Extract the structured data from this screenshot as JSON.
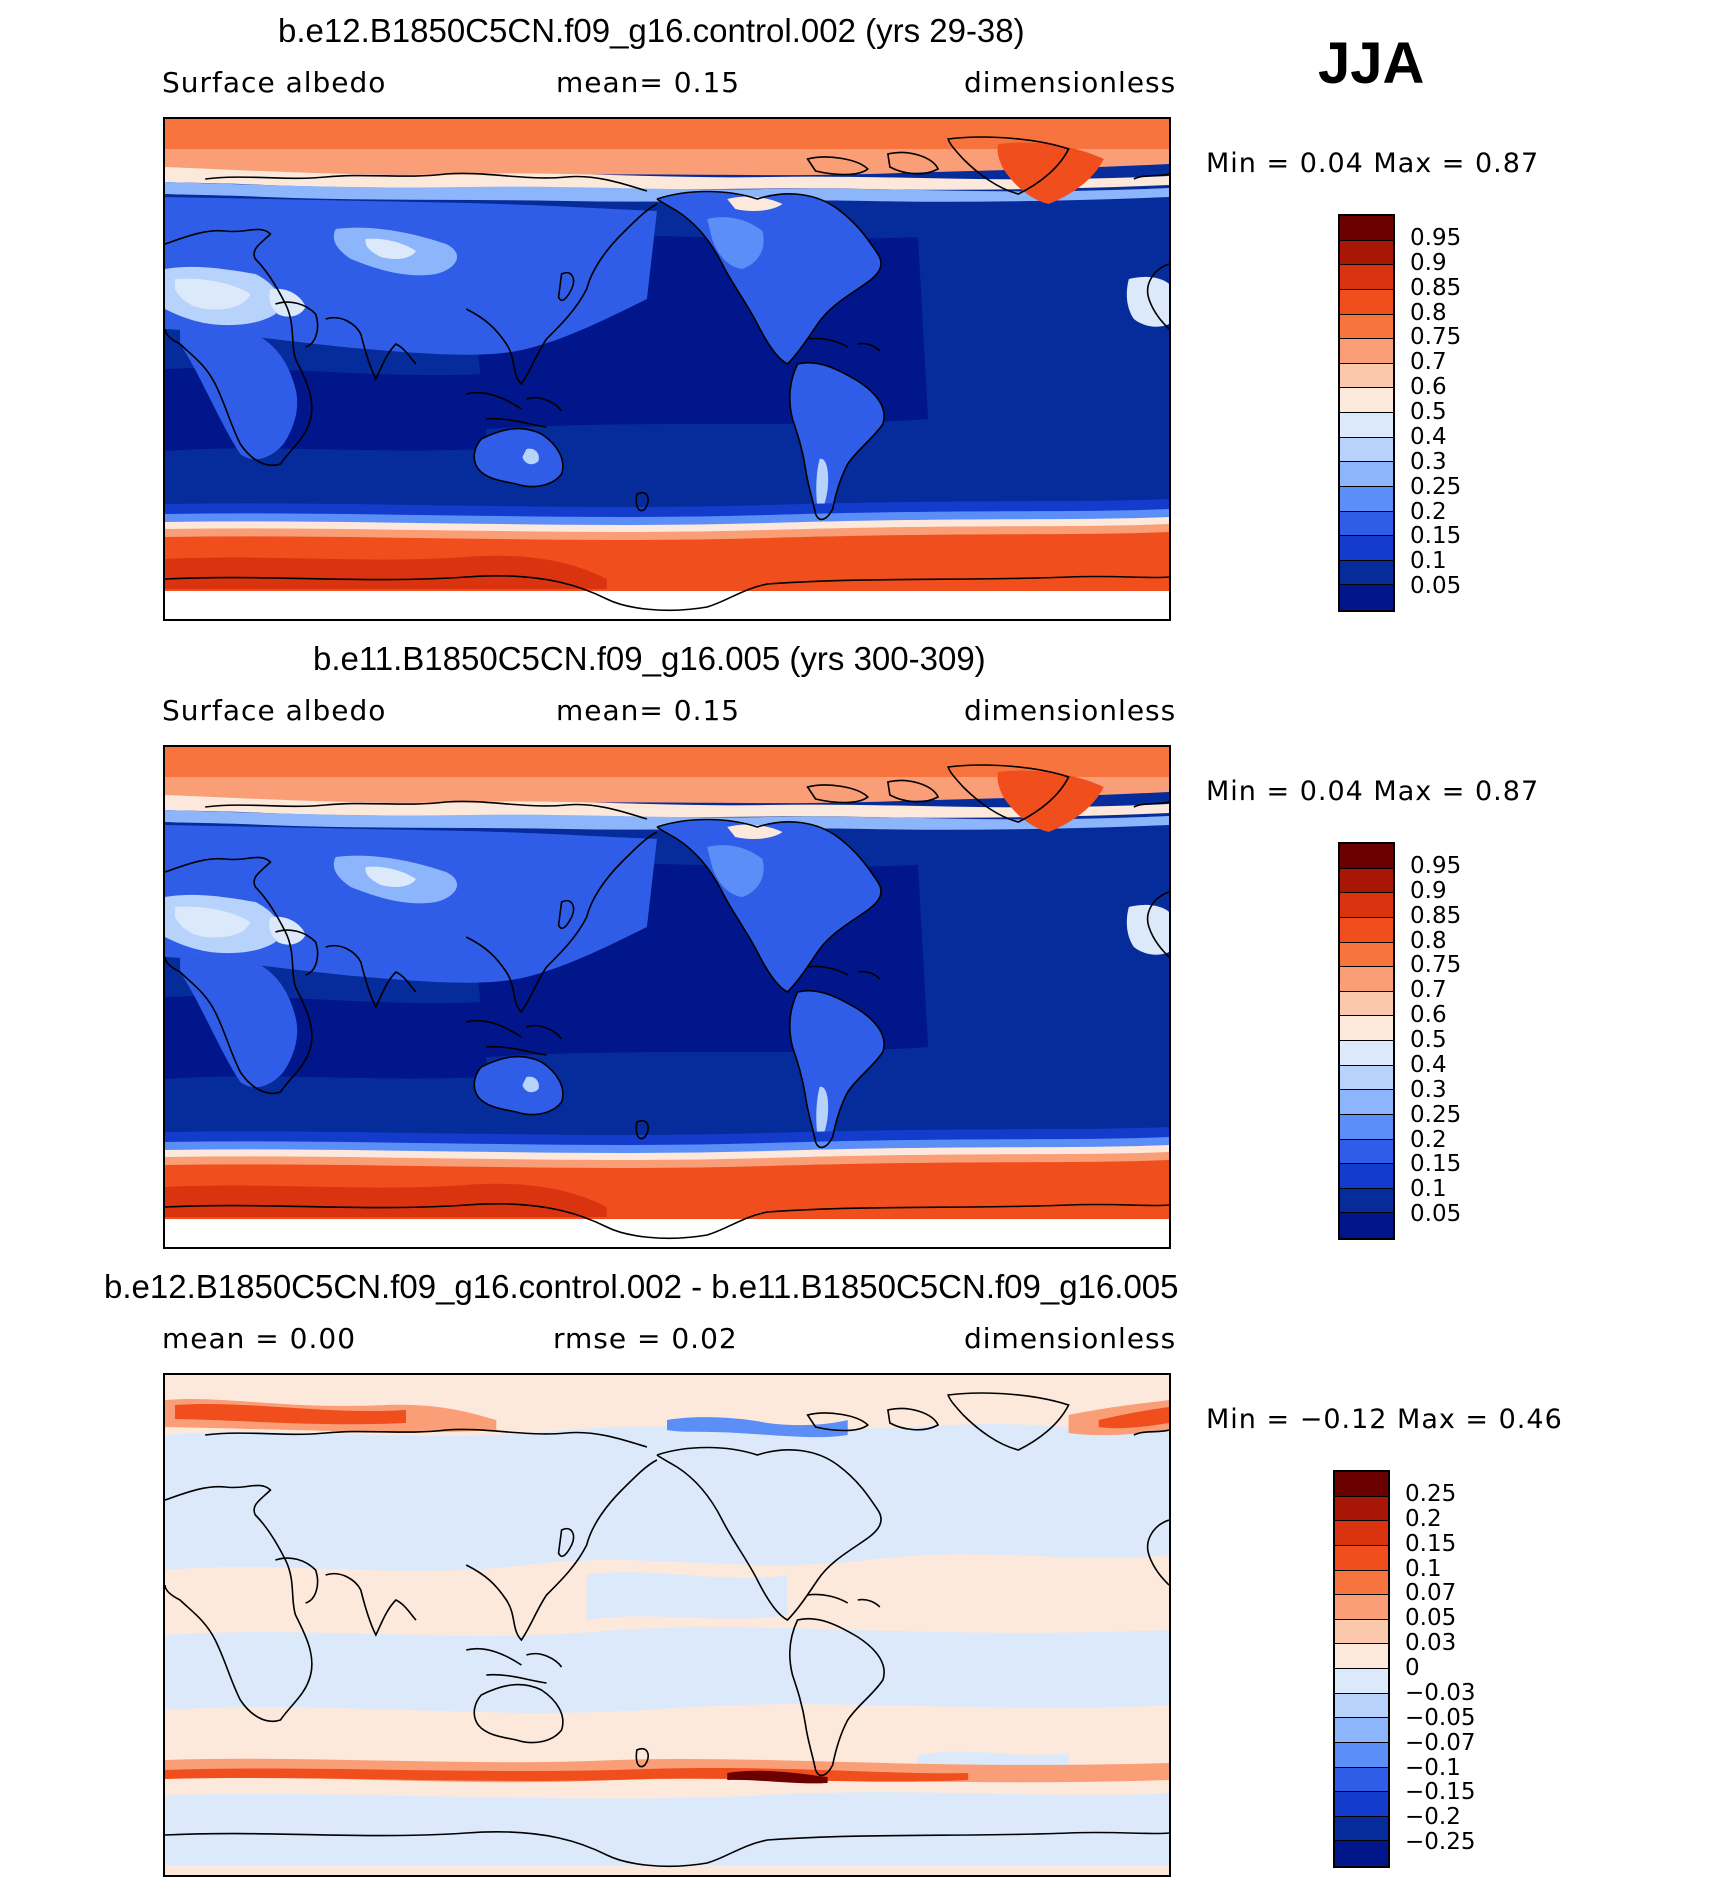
{
  "season": "JJA",
  "panels": [
    {
      "id": "control",
      "title": "b.e12.B1850C5CN.f09_g16.control.002 (yrs 29-38)",
      "left_label": "Surface albedo",
      "center_label": "mean=    0.15",
      "right_label": "dimensionless",
      "minmax": "Min =    0.04  Max =    0.87",
      "colorbar_labels": [
        "0.95",
        "0.9",
        "0.85",
        "0.8",
        "0.75",
        "0.7",
        "0.6",
        "0.5",
        "0.4",
        "0.3",
        "0.25",
        "0.2",
        "0.15",
        "0.1",
        "0.05"
      ],
      "colorbar_colors": [
        "#6a0000",
        "#a81606",
        "#d9340f",
        "#f04e1d",
        "#f7743f",
        "#fa9e77",
        "#fcc8ad",
        "#fde9dc",
        "#dbe9fb",
        "#b7d2fb",
        "#8cb5fb",
        "#5c8ef7",
        "#2f5de7",
        "#133ccc",
        "#062b9b",
        "#00168a"
      ]
    },
    {
      "id": "case",
      "title": "b.e11.B1850C5CN.f09_g16.005 (yrs 300-309)",
      "left_label": "Surface albedo",
      "center_label": "mean=    0.15",
      "right_label": "dimensionless",
      "minmax": "Min =    0.04  Max =    0.87",
      "colorbar_labels": [
        "0.95",
        "0.9",
        "0.85",
        "0.8",
        "0.75",
        "0.7",
        "0.6",
        "0.5",
        "0.4",
        "0.3",
        "0.25",
        "0.2",
        "0.15",
        "0.1",
        "0.05"
      ],
      "colorbar_colors": [
        "#6a0000",
        "#a81606",
        "#d9340f",
        "#f04e1d",
        "#f7743f",
        "#fa9e77",
        "#fcc8ad",
        "#fde9dc",
        "#dbe9fb",
        "#b7d2fb",
        "#8cb5fb",
        "#5c8ef7",
        "#2f5de7",
        "#133ccc",
        "#062b9b",
        "#00168a"
      ]
    },
    {
      "id": "diff",
      "title": "b.e12.B1850C5CN.f09_g16.control.002 - b.e11.B1850C5CN.f09_g16.005",
      "left_label": "mean =    0.00",
      "center_label": "rmse =    0.02",
      "right_label": "dimensionless",
      "minmax": "Min =   −0.12  Max =    0.46",
      "colorbar_labels": [
        "0.25",
        "0.2",
        "0.15",
        "0.1",
        "0.07",
        "0.05",
        "0.03",
        "0",
        "−0.03",
        "−0.05",
        "−0.07",
        "−0.1",
        "−0.15",
        "−0.2",
        "−0.25"
      ],
      "colorbar_colors": [
        "#6a0000",
        "#a81606",
        "#d9340f",
        "#f04e1d",
        "#f7743f",
        "#fa9e77",
        "#fcc8ad",
        "#fde9dc",
        "#dbe9fb",
        "#b7d2fb",
        "#8cb5fb",
        "#5c8ef7",
        "#2f5de7",
        "#133ccc",
        "#062b9b",
        "#00168a"
      ]
    }
  ]
}
